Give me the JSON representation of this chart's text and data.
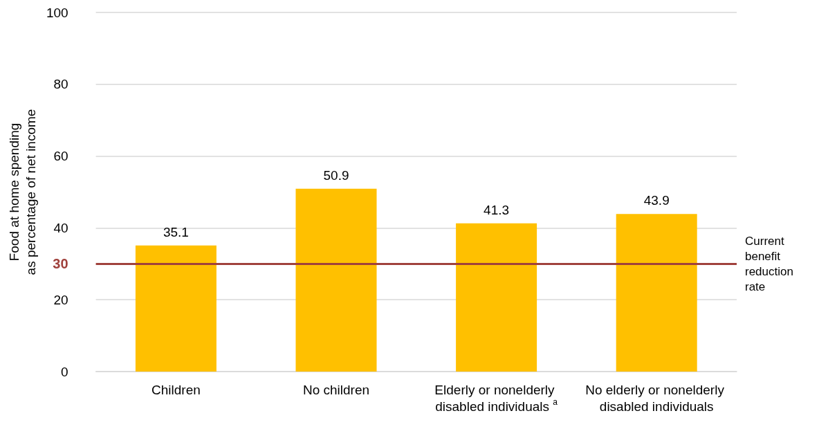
{
  "chart_data": {
    "type": "bar",
    "ylabel": "Food at home spending\nas percentage of net income",
    "categories": [
      "Children",
      "No children",
      "Elderly or nonelderly disabled individuals $^{a}$",
      "No elderly or nonelderly disabled individuals"
    ],
    "values": [
      35.1,
      50.9,
      41.3,
      43.9
    ],
    "color": "#ffc000",
    "ylim": [
      0,
      100
    ],
    "yticks": [
      0,
      20,
      {
        "value": 30,
        "label": "30"
      },
      40,
      60,
      80,
      100
    ],
    "grid": "y",
    "data_labels": true,
    "ref_lines": [
      {
        "axis": "y",
        "value": 30,
        "label": "Current benefit reduction rate",
        "color": "#a0413c"
      }
    ]
  }
}
